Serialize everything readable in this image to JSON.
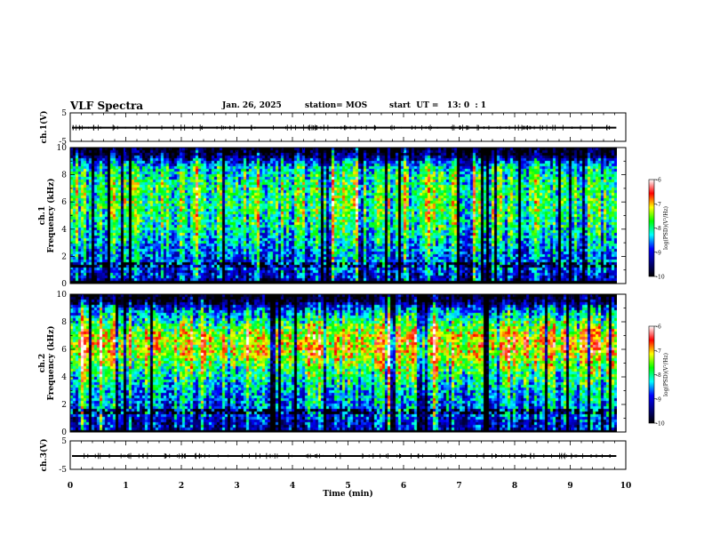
{
  "header": {
    "title": "VLF Spectra",
    "date": "Jan. 26, 2025",
    "station": "station= MOS",
    "start": "start  UT =   13: 0  : 1"
  },
  "colors": {
    "colormap": [
      "#000000",
      "#00007f",
      "#0000ff",
      "#00ffff",
      "#00ff00",
      "#ffff00",
      "#ff0000",
      "#ffffff"
    ]
  },
  "chart_data": [
    {
      "type": "line",
      "ylabel": "ch.1(V)",
      "xlim": [
        0,
        10
      ],
      "ylim": [
        -5,
        5
      ],
      "yticks": [
        "5",
        "-5"
      ],
      "baseline": -0.2
    },
    {
      "type": "heatmap",
      "ylabel": "ch.1\nFrequency (kHz)",
      "xlim": [
        0,
        10
      ],
      "ylim": [
        0,
        10
      ],
      "yticks": [
        "0",
        "2",
        "4",
        "6",
        "8",
        "10"
      ],
      "data_end": 9.83,
      "colorbar": {
        "label": "log(PSD)(V²/Hz)",
        "range": [
          -10,
          -6
        ],
        "ticks": [
          "-6",
          "-7",
          "-8",
          "-9",
          "-10"
        ]
      },
      "profile": [
        [
          0,
          -9.6
        ],
        [
          0.3,
          -9.2
        ],
        [
          1.0,
          -8.9
        ],
        [
          1.6,
          -8.6
        ],
        [
          2.0,
          -8.7
        ],
        [
          3.0,
          -8.4
        ],
        [
          4.5,
          -8.0
        ],
        [
          6.0,
          -7.8
        ],
        [
          7.5,
          -7.9
        ],
        [
          8.6,
          -8.2
        ],
        [
          9.2,
          -9.0
        ],
        [
          9.5,
          -9.7
        ],
        [
          10,
          -10.0
        ]
      ]
    },
    {
      "type": "heatmap",
      "ylabel": "ch.2\nFrequency (kHz)",
      "xlim": [
        0,
        10
      ],
      "ylim": [
        0,
        10
      ],
      "yticks": [
        "0",
        "2",
        "4",
        "6",
        "8",
        "10"
      ],
      "data_end": 9.83,
      "colorbar": {
        "label": "log(PSD)(V²/Hz)",
        "range": [
          -10,
          -6
        ],
        "ticks": [
          "-6",
          "-7",
          "-8",
          "-9",
          "-10"
        ]
      },
      "profile": [
        [
          0,
          -9.5
        ],
        [
          0.3,
          -9.1
        ],
        [
          1.0,
          -9.0
        ],
        [
          1.6,
          -8.5
        ],
        [
          2.0,
          -8.6
        ],
        [
          3.0,
          -8.4
        ],
        [
          4.0,
          -8.0
        ],
        [
          5.0,
          -7.6
        ],
        [
          6.0,
          -7.1
        ],
        [
          7.0,
          -7.1
        ],
        [
          8.0,
          -7.8
        ],
        [
          8.6,
          -8.3
        ],
        [
          9.2,
          -8.9
        ],
        [
          9.5,
          -9.6
        ],
        [
          10,
          -10.0
        ]
      ]
    },
    {
      "type": "line",
      "ylabel": "ch.3(V)",
      "xlim": [
        0,
        10
      ],
      "ylim": [
        -5,
        5
      ],
      "yticks": [
        "5",
        "-5"
      ],
      "xlabel": "Time (min)",
      "xticks": [
        "0",
        "1",
        "2",
        "3",
        "4",
        "5",
        "6",
        "7",
        "8",
        "9",
        "10"
      ],
      "baseline": -0.3
    }
  ]
}
